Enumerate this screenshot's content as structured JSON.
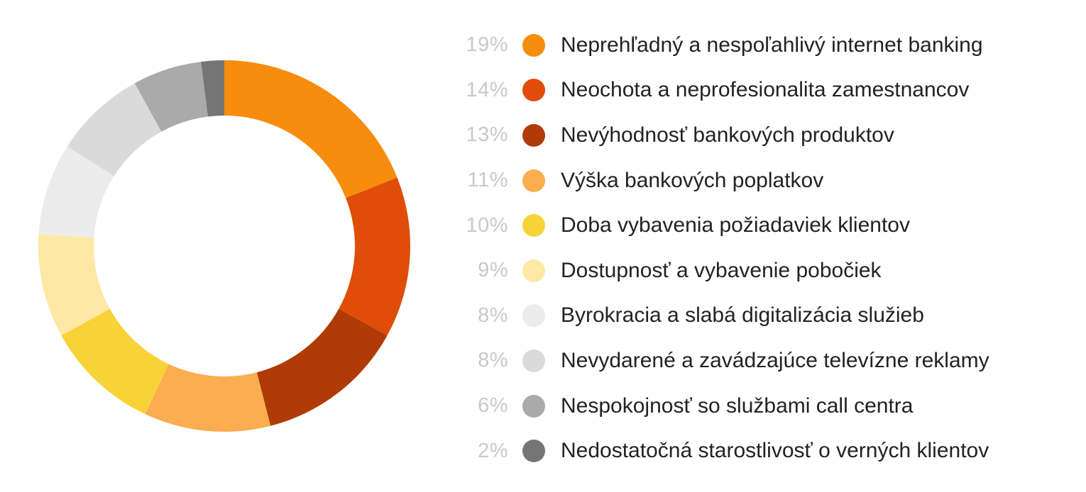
{
  "chart_data": {
    "type": "pie",
    "variant": "donut",
    "legend_position": "right",
    "slices": [
      {
        "label": "Neprehľadný a nespoľahlivý internet banking",
        "value": 19,
        "value_label": "19%",
        "color": "#f88c0c"
      },
      {
        "label": "Neochota a neprofesionalita zamestnancov",
        "value": 14,
        "value_label": "14%",
        "color": "#df4d08"
      },
      {
        "label": "Nevýhodnosť bankových produktov",
        "value": 13,
        "value_label": "13%",
        "color": "#b03b06"
      },
      {
        "label": "Výška bankových poplatkov",
        "value": 11,
        "value_label": "11%",
        "color": "#fbad50"
      },
      {
        "label": "Doba vybavenia požiadaviek klientov",
        "value": 10,
        "value_label": "10%",
        "color": "#f8d338"
      },
      {
        "label": "Dostupnosť a vybavenie pobočiek",
        "value": 9,
        "value_label": "9%",
        "color": "#fee8a3"
      },
      {
        "label": "Byrokracia a slabá digitalizácia služieb",
        "value": 8,
        "value_label": "8%",
        "color": "#ececec"
      },
      {
        "label": "Nevydarené a zavádzajúce televízne reklamy",
        "value": 8,
        "value_label": "8%",
        "color": "#dadada"
      },
      {
        "label": "Nespokojnosť so službami call centra",
        "value": 6,
        "value_label": "6%",
        "color": "#aaaaaa"
      },
      {
        "label": "Nedostatočná starostlivosť o verných klientov",
        "value": 2,
        "value_label": "2%",
        "color": "#757575"
      }
    ]
  }
}
